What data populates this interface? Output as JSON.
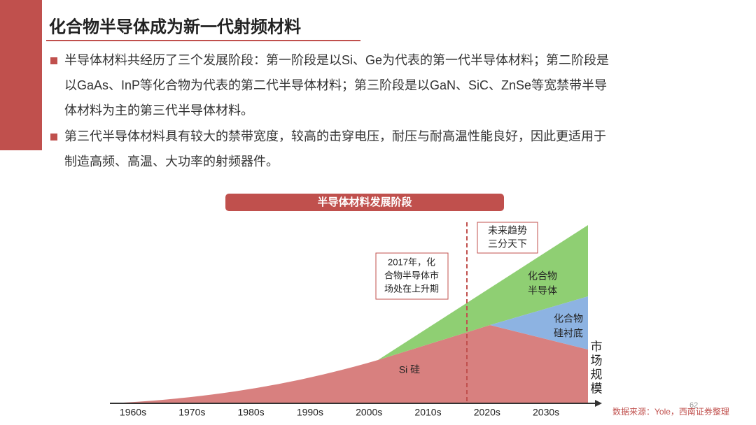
{
  "header": {
    "title": "化合物半导体成为新一代射频材料"
  },
  "bullets": [
    {
      "lines": [
        "半导体材料共经历了三个发展阶段：第一阶段是以Si、Ge为代表的第一代半导体材料；第二阶段是",
        "以GaAs、InP等化合物为代表的第二代半导体材料；第三阶段是以GaN、SiC、ZnSe等宽禁带半导",
        "体材料为主的第三代半导体材料。"
      ]
    },
    {
      "lines": [
        "第三代半导体材料具有较大的禁带宽度，较高的击穿电压，耐压与耐高温性能良好，因此更适用于",
        "制造高频、高温、大功率的射频器件。"
      ]
    }
  ],
  "diagram": {
    "title": "半导体材料发展阶段",
    "decades": [
      "1960s",
      "1970s",
      "1980s",
      "1990s",
      "2000s",
      "2010s",
      "2020s",
      "2030s"
    ],
    "note_2017": [
      "2017年，化",
      "合物半导体市",
      "场处在上升期"
    ],
    "note_future": [
      "未来趋势",
      "三分天下"
    ],
    "area_compound": [
      "化合物",
      "半导体"
    ],
    "area_substrate": [
      "化合物",
      "硅衬底"
    ],
    "area_si": "Si 硅",
    "axis_label": [
      "市",
      "场",
      "规",
      "模"
    ]
  },
  "footer": {
    "source": "数据来源：Yole，西南证券整理",
    "page": "62"
  }
}
